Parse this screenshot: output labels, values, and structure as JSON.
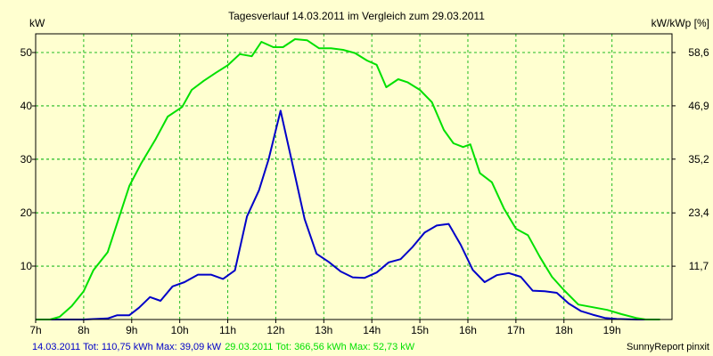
{
  "chart_data": {
    "type": "line",
    "title": "Tagesverlauf 14.03.2011 im Vergleich zum 29.03.2011",
    "ylabel_left": "kW",
    "ylabel_right": "kW/kWp [%]",
    "x_tick_labels": [
      "7h",
      "8h",
      "9h",
      "10h",
      "11h",
      "12h",
      "13h",
      "14h",
      "15h",
      "16h",
      "17h",
      "18h",
      "19h"
    ],
    "x_ticks": [
      7,
      8,
      9,
      10,
      11,
      12,
      13,
      14,
      15,
      16,
      17,
      18,
      19
    ],
    "xlim": [
      7,
      20.25
    ],
    "ylim": [
      0,
      53.5
    ],
    "y_ticks_left": [
      10,
      20,
      30,
      40,
      50
    ],
    "y_ticks_left_labels": [
      "10",
      "20",
      "30",
      "40",
      "50"
    ],
    "y_ticks_right_values": [
      11.7,
      23.4,
      35.2,
      46.9,
      58.6
    ],
    "y_ticks_right_labels": [
      "11,7",
      "23,4",
      "35,2",
      "46,9",
      "58,6"
    ],
    "grid": true,
    "series": [
      {
        "name": "14.03.2011",
        "color": "#0000c8",
        "summary": "14.03.2011 Tot: 110,75 kWh Max: 39,09 kW",
        "points": [
          [
            7.0,
            0
          ],
          [
            7.5,
            0
          ],
          [
            8.0,
            0
          ],
          [
            8.5,
            0.2
          ],
          [
            8.7,
            0.8
          ],
          [
            8.95,
            0.8
          ],
          [
            9.15,
            2.2
          ],
          [
            9.38,
            4.2
          ],
          [
            9.6,
            3.5
          ],
          [
            9.85,
            6.2
          ],
          [
            10.1,
            7.0
          ],
          [
            10.38,
            8.4
          ],
          [
            10.65,
            8.4
          ],
          [
            10.9,
            7.6
          ],
          [
            11.15,
            9.2
          ],
          [
            11.4,
            19.3
          ],
          [
            11.65,
            24.2
          ],
          [
            11.85,
            30.0
          ],
          [
            12.1,
            39.1
          ],
          [
            12.35,
            29.0
          ],
          [
            12.6,
            18.8
          ],
          [
            12.85,
            12.3
          ],
          [
            13.1,
            10.8
          ],
          [
            13.35,
            9.0
          ],
          [
            13.6,
            7.9
          ],
          [
            13.85,
            7.8
          ],
          [
            14.1,
            8.8
          ],
          [
            14.35,
            10.7
          ],
          [
            14.6,
            11.3
          ],
          [
            14.85,
            13.6
          ],
          [
            15.1,
            16.3
          ],
          [
            15.35,
            17.6
          ],
          [
            15.6,
            17.9
          ],
          [
            15.85,
            14.0
          ],
          [
            16.1,
            9.3
          ],
          [
            16.35,
            7.0
          ],
          [
            16.6,
            8.3
          ],
          [
            16.85,
            8.7
          ],
          [
            17.1,
            8.0
          ],
          [
            17.35,
            5.4
          ],
          [
            17.6,
            5.3
          ],
          [
            17.85,
            5.0
          ],
          [
            18.1,
            3.0
          ],
          [
            18.35,
            1.6
          ],
          [
            18.6,
            0.9
          ],
          [
            18.85,
            0.3
          ],
          [
            19.1,
            0.1
          ],
          [
            19.5,
            0
          ],
          [
            20.0,
            0
          ]
        ]
      },
      {
        "name": "29.03.2011",
        "color": "#00e000",
        "summary": "29.03.2011 Tot: 366,56 kWh Max: 52,73 kW",
        "points": [
          [
            7.0,
            0
          ],
          [
            7.3,
            0
          ],
          [
            7.5,
            0.5
          ],
          [
            7.75,
            2.5
          ],
          [
            8.0,
            5.3
          ],
          [
            8.2,
            9.2
          ],
          [
            8.5,
            12.6
          ],
          [
            8.95,
            25.0
          ],
          [
            9.2,
            29.3
          ],
          [
            9.5,
            33.8
          ],
          [
            9.75,
            38.0
          ],
          [
            10.05,
            39.8
          ],
          [
            10.25,
            43.0
          ],
          [
            10.5,
            44.7
          ],
          [
            10.75,
            46.2
          ],
          [
            11.0,
            47.6
          ],
          [
            11.25,
            49.7
          ],
          [
            11.5,
            49.3
          ],
          [
            11.7,
            52.0
          ],
          [
            11.95,
            51.0
          ],
          [
            12.15,
            51.0
          ],
          [
            12.4,
            52.5
          ],
          [
            12.65,
            52.3
          ],
          [
            12.9,
            50.8
          ],
          [
            13.15,
            50.8
          ],
          [
            13.4,
            50.5
          ],
          [
            13.65,
            49.9
          ],
          [
            13.9,
            48.5
          ],
          [
            14.1,
            47.7
          ],
          [
            14.3,
            43.5
          ],
          [
            14.55,
            45.0
          ],
          [
            14.75,
            44.4
          ],
          [
            15.0,
            43.0
          ],
          [
            15.25,
            40.7
          ],
          [
            15.5,
            35.5
          ],
          [
            15.7,
            33.0
          ],
          [
            15.9,
            32.3
          ],
          [
            16.05,
            32.8
          ],
          [
            16.25,
            27.4
          ],
          [
            16.5,
            25.7
          ],
          [
            16.75,
            20.8
          ],
          [
            17.0,
            17.0
          ],
          [
            17.25,
            15.8
          ],
          [
            17.5,
            11.7
          ],
          [
            17.75,
            8.0
          ],
          [
            18.0,
            5.5
          ],
          [
            18.3,
            2.8
          ],
          [
            18.6,
            2.3
          ],
          [
            18.9,
            1.8
          ],
          [
            19.2,
            1.0
          ],
          [
            19.5,
            0.3
          ],
          [
            19.7,
            0
          ],
          [
            20.0,
            0
          ]
        ]
      }
    ],
    "footer_right": "SunnyReport pinxit"
  }
}
